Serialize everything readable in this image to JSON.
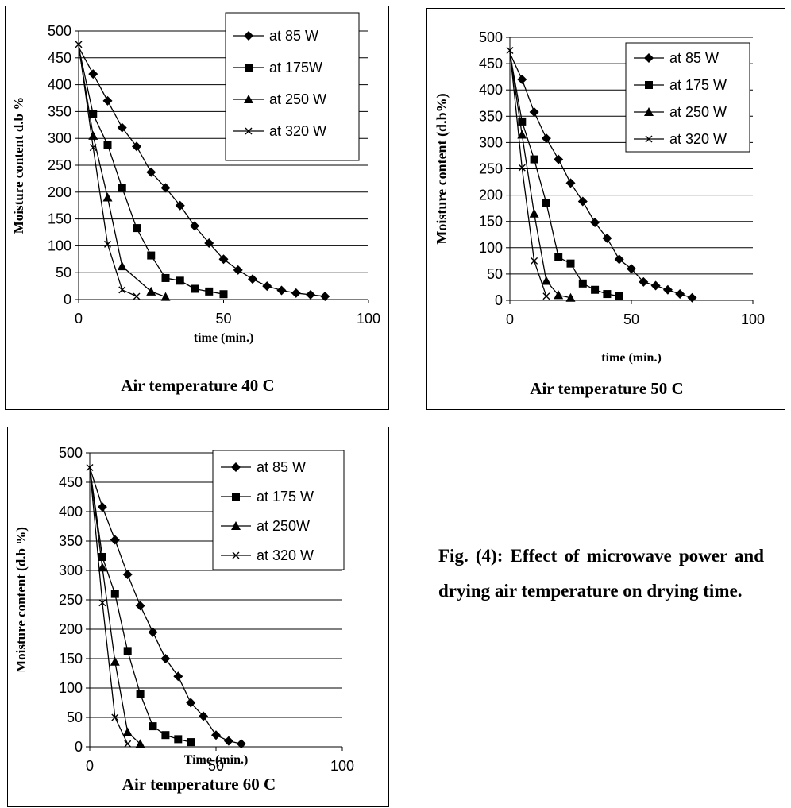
{
  "chart_data": [
    {
      "type": "line",
      "title": "Air temperature 40 C",
      "xlabel": "time (min.)",
      "ylabel": "Moisture content d.b %",
      "xlim": [
        0,
        100
      ],
      "ylim": [
        0,
        500
      ],
      "x_ticks": [
        "0",
        "50",
        "100"
      ],
      "y_ticks": [
        "0",
        "50",
        "100",
        "150",
        "200",
        "250",
        "300",
        "350",
        "400",
        "450",
        "500"
      ],
      "legend_position": "top-right",
      "grid": "horizontal",
      "series": [
        {
          "name": "at 85 W",
          "marker": "diamond",
          "points": [
            [
              0,
              470
            ],
            [
              5,
              420
            ],
            [
              10,
              370
            ],
            [
              15,
              320
            ],
            [
              20,
              285
            ],
            [
              25,
              237
            ],
            [
              30,
              208
            ],
            [
              35,
              175
            ],
            [
              40,
              137
            ],
            [
              45,
              105
            ],
            [
              50,
              75
            ],
            [
              55,
              55
            ],
            [
              60,
              38
            ],
            [
              65,
              25
            ],
            [
              70,
              17
            ],
            [
              75,
              12
            ],
            [
              80,
              9
            ],
            [
              85,
              6
            ]
          ]
        },
        {
          "name": "at 175W",
          "marker": "square",
          "points": [
            [
              0,
              470
            ],
            [
              5,
              345
            ],
            [
              10,
              288
            ],
            [
              15,
              208
            ],
            [
              20,
              133
            ],
            [
              25,
              82
            ],
            [
              30,
              40
            ],
            [
              35,
              35
            ],
            [
              40,
              20
            ],
            [
              45,
              15
            ],
            [
              50,
              10
            ]
          ]
        },
        {
          "name": "at 250 W",
          "marker": "triangle",
          "points": [
            [
              0,
              470
            ],
            [
              5,
              305
            ],
            [
              10,
              190
            ],
            [
              15,
              62
            ],
            [
              25,
              15
            ],
            [
              30,
              5
            ]
          ]
        },
        {
          "name": "at 320 W",
          "marker": "x",
          "points": [
            [
              0,
              475
            ],
            [
              5,
              283
            ],
            [
              10,
              103
            ],
            [
              15,
              18
            ],
            [
              20,
              6
            ]
          ]
        }
      ]
    },
    {
      "type": "line",
      "title": "Air temperature 50 C",
      "xlabel": "time (min.)",
      "ylabel": "Moisture content (d.b%)",
      "xlim": [
        0,
        100
      ],
      "ylim": [
        0,
        500
      ],
      "x_ticks": [
        "0",
        "50",
        "100"
      ],
      "y_ticks": [
        "0",
        "50",
        "100",
        "150",
        "200",
        "250",
        "300",
        "350",
        "400",
        "450",
        "500"
      ],
      "legend_position": "top-right",
      "grid": "horizontal",
      "series": [
        {
          "name": "at 85 W",
          "marker": "diamond",
          "points": [
            [
              0,
              470
            ],
            [
              5,
              420
            ],
            [
              10,
              358
            ],
            [
              15,
              308
            ],
            [
              20,
              268
            ],
            [
              25,
              223
            ],
            [
              30,
              188
            ],
            [
              35,
              148
            ],
            [
              40,
              118
            ],
            [
              45,
              78
            ],
            [
              50,
              60
            ],
            [
              55,
              35
            ],
            [
              60,
              28
            ],
            [
              65,
              20
            ],
            [
              70,
              12
            ],
            [
              75,
              5
            ]
          ]
        },
        {
          "name": "at 175 W",
          "marker": "square",
          "points": [
            [
              0,
              470
            ],
            [
              5,
              340
            ],
            [
              10,
              268
            ],
            [
              15,
              185
            ],
            [
              20,
              82
            ],
            [
              25,
              70
            ],
            [
              30,
              32
            ],
            [
              35,
              20
            ],
            [
              40,
              12
            ],
            [
              45,
              8
            ]
          ]
        },
        {
          "name": "at 250 W",
          "marker": "triangle",
          "points": [
            [
              0,
              470
            ],
            [
              5,
              315
            ],
            [
              10,
              165
            ],
            [
              15,
              37
            ],
            [
              20,
              10
            ],
            [
              25,
              5
            ]
          ]
        },
        {
          "name": "at 320 W",
          "marker": "x",
          "points": [
            [
              0,
              475
            ],
            [
              5,
              252
            ],
            [
              10,
              75
            ],
            [
              15,
              8
            ]
          ]
        }
      ]
    },
    {
      "type": "line",
      "title": "Air temperature 60 C",
      "xlabel": "Time (min.)",
      "ylabel": "Moisture content (d.b %)",
      "xlim": [
        0,
        100
      ],
      "ylim": [
        0,
        500
      ],
      "x_ticks": [
        "0",
        "50",
        "100"
      ],
      "y_ticks": [
        "0",
        "50",
        "100",
        "150",
        "200",
        "250",
        "300",
        "350",
        "400",
        "450",
        "500"
      ],
      "legend_position": "top-right",
      "grid": "horizontal",
      "series": [
        {
          "name": "at 85 W",
          "marker": "diamond",
          "points": [
            [
              0,
              475
            ],
            [
              5,
              408
            ],
            [
              10,
              352
            ],
            [
              15,
              293
            ],
            [
              20,
              240
            ],
            [
              25,
              195
            ],
            [
              30,
              150
            ],
            [
              35,
              120
            ],
            [
              40,
              75
            ],
            [
              45,
              52
            ],
            [
              50,
              20
            ],
            [
              55,
              10
            ],
            [
              60,
              5
            ]
          ]
        },
        {
          "name": "at 175 W",
          "marker": "square",
          "points": [
            [
              0,
              475
            ],
            [
              5,
              323
            ],
            [
              10,
              260
            ],
            [
              15,
              163
            ],
            [
              20,
              90
            ],
            [
              25,
              35
            ],
            [
              30,
              20
            ],
            [
              35,
              13
            ],
            [
              40,
              8
            ]
          ]
        },
        {
          "name": "at 250W",
          "marker": "triangle",
          "points": [
            [
              0,
              475
            ],
            [
              5,
              305
            ],
            [
              10,
              145
            ],
            [
              15,
              25
            ],
            [
              20,
              5
            ]
          ]
        },
        {
          "name": "at 320 W",
          "marker": "x",
          "points": [
            [
              0,
              475
            ],
            [
              5,
              245
            ],
            [
              10,
              50
            ],
            [
              15,
              5
            ]
          ]
        }
      ]
    }
  ],
  "figure_caption": "Fig. (4): Effect of microwave power and drying air temperature on drying time."
}
